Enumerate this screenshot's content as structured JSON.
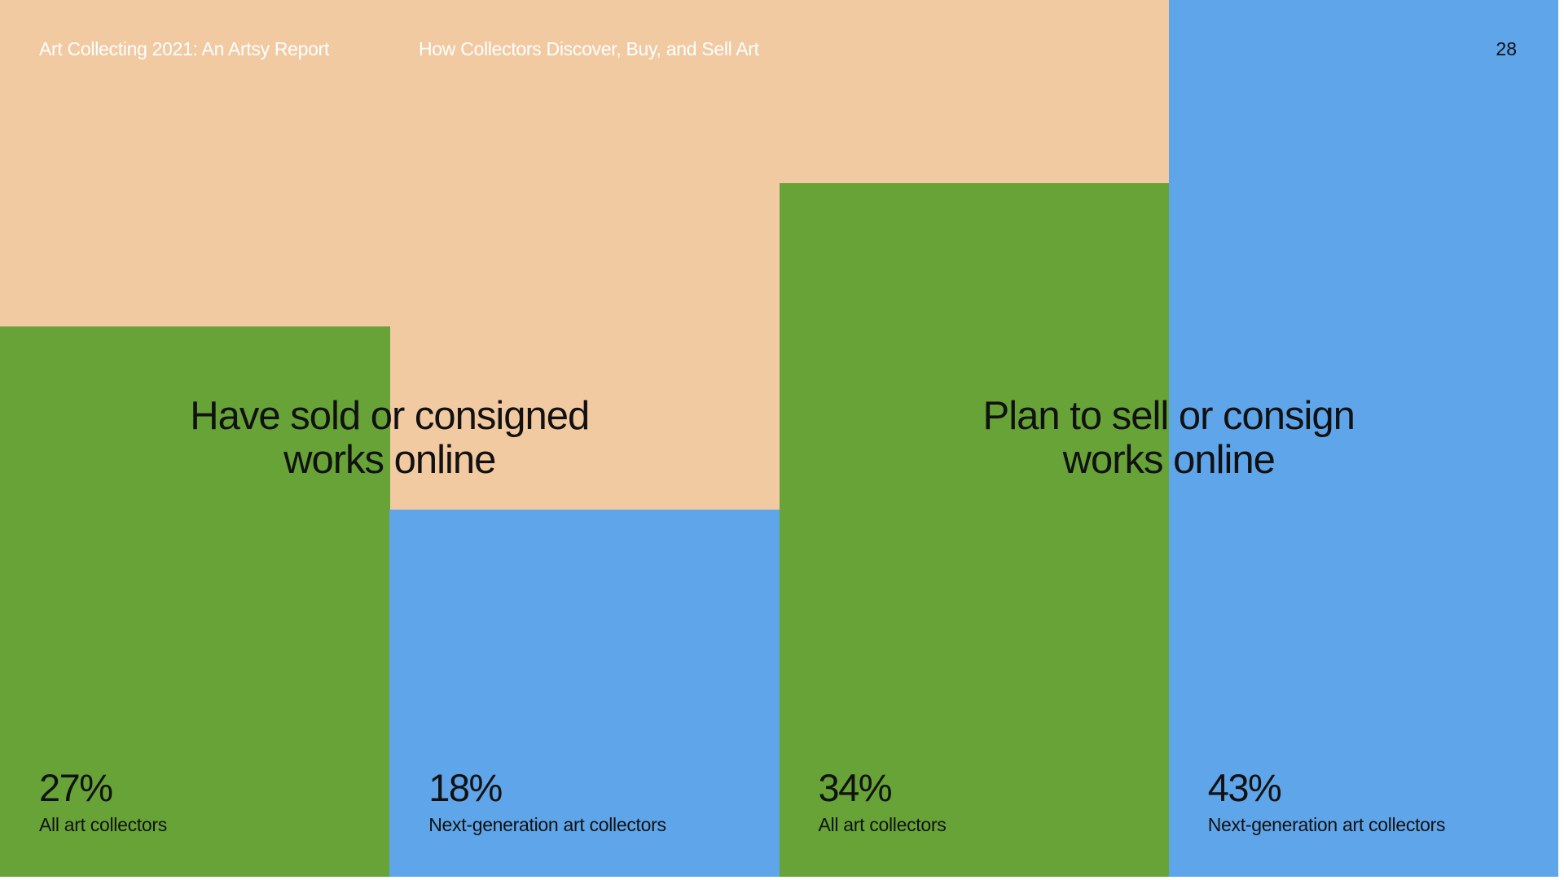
{
  "header": {
    "report": "Art Collecting 2021: An Artsy Report",
    "section": "How Collectors Discover, Buy, and Sell Art",
    "page": "28"
  },
  "chart_data": {
    "type": "bar",
    "categories": [
      "Have sold or consigned works online",
      "Plan to sell or consign works online"
    ],
    "series": [
      {
        "name": "All art collectors",
        "color": "#67a337",
        "values": [
          27,
          34
        ],
        "value_labels": [
          "27%",
          "34%"
        ]
      },
      {
        "name": "Next-generation art collectors",
        "color": "#5fa5e9",
        "values": [
          18,
          43
        ],
        "value_labels": [
          "18%",
          "43%"
        ]
      }
    ],
    "ylim": [
      0,
      43
    ],
    "background": "#f2caa2"
  }
}
